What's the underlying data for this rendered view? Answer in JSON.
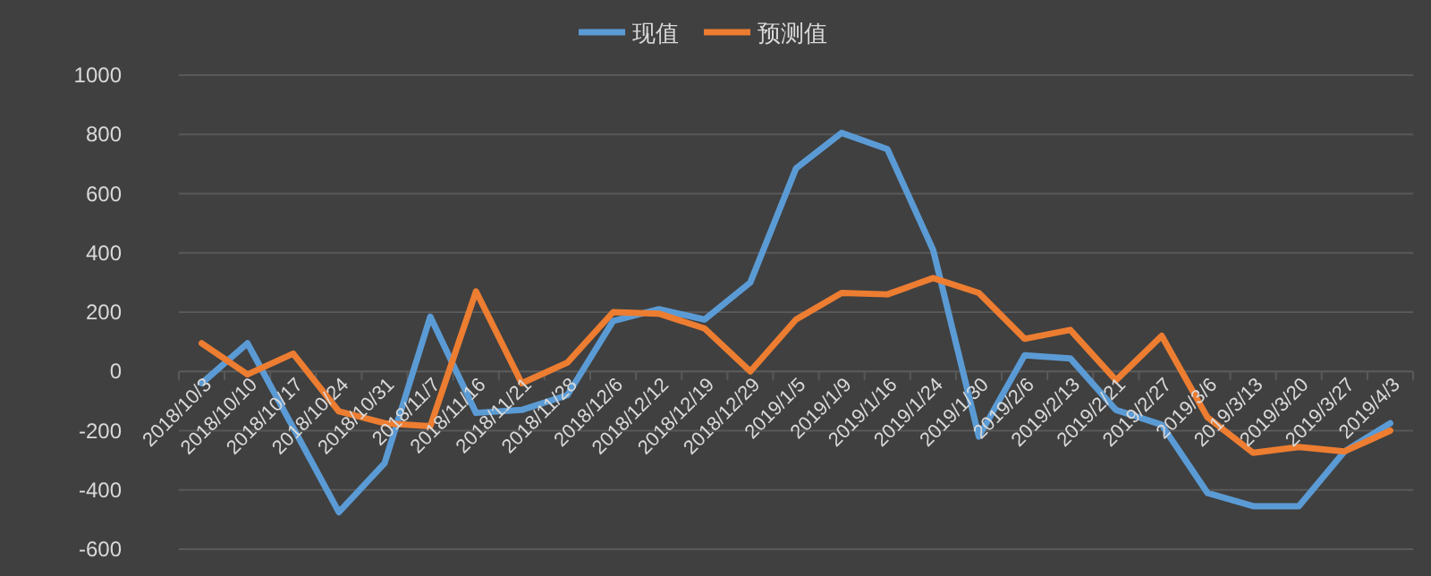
{
  "chart_data": {
    "type": "line",
    "categories": [
      "2018/10/3",
      "2018/10/10",
      "2018/10/17",
      "2018/10/24",
      "2018/10/31",
      "2018/11/7",
      "2018/11/16",
      "2018/11/21",
      "2018/11/28",
      "2018/12/6",
      "2018/12/12",
      "2018/12/19",
      "2018/12/29",
      "2019/1/5",
      "2019/1/9",
      "2019/1/16",
      "2019/1/24",
      "2019/1/30",
      "2019/2/6",
      "2019/2/13",
      "2019/2/21",
      "2019/2/27",
      "2019/3/6",
      "2019/3/13",
      "2019/3/20",
      "2019/3/27",
      "2019/4/3"
    ],
    "series": [
      {
        "name": "现值",
        "color": "#5b9bd5",
        "values": [
          -40,
          95,
          -190,
          -475,
          -310,
          185,
          -140,
          -130,
          -80,
          170,
          210,
          175,
          300,
          685,
          805,
          750,
          410,
          -220,
          54,
          44,
          -130,
          -180,
          -410,
          -455,
          -455,
          -270,
          -175
        ]
      },
      {
        "name": "预测值",
        "color": "#ed7d31",
        "values": [
          95,
          -10,
          60,
          -135,
          -175,
          -185,
          270,
          -40,
          30,
          200,
          195,
          145,
          0,
          175,
          265,
          260,
          315,
          265,
          110,
          140,
          -30,
          120,
          -155,
          -275,
          -255,
          -270,
          -200
        ]
      }
    ],
    "ylim": [
      -600,
      1000
    ],
    "yticks": [
      -600,
      -400,
      -200,
      0,
      200,
      400,
      600,
      800,
      1000
    ],
    "grid": "y",
    "legend": "top",
    "line_style": "solid",
    "marker": "none"
  }
}
